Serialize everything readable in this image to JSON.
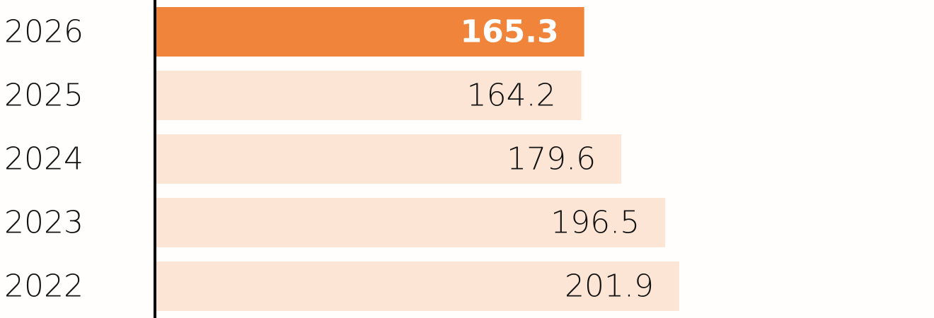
{
  "chart_data": {
    "type": "barh",
    "categories": [
      "2026",
      "2025",
      "2024",
      "2023",
      "2022"
    ],
    "values": [
      165.3,
      164.2,
      179.6,
      196.5,
      201.9
    ],
    "color": "#fce5d4",
    "highlight_color": "#f0843a",
    "highlight_index": 0,
    "xlim": [
      0,
      300
    ]
  }
}
